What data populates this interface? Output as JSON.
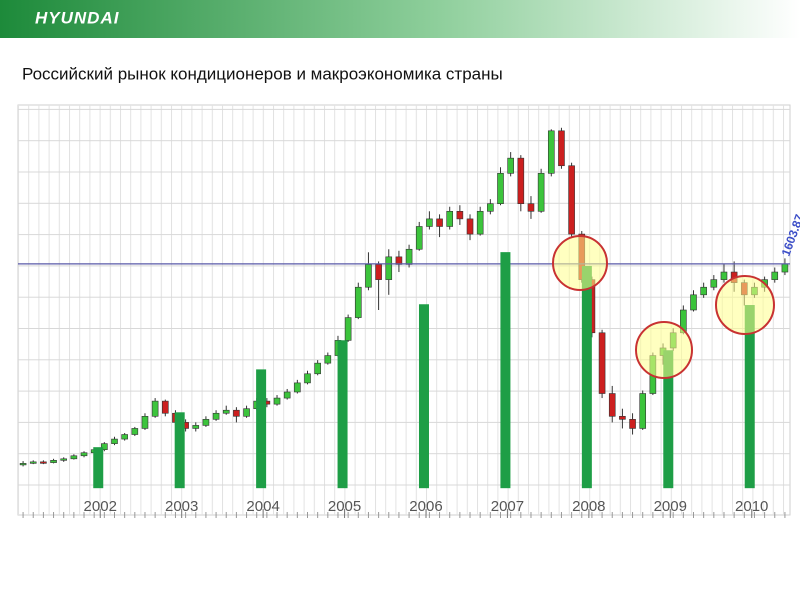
{
  "header": {
    "logo": "HYUNDAI"
  },
  "title": "Российский рынок кондиционеров и макроэкономика страны",
  "chart_data": {
    "type": "candlestick",
    "ylim": [
      -50,
      2650
    ],
    "y2lim": [
      -7,
      100
    ],
    "xlim": [
      2000.99,
      2010.47
    ],
    "xticks": [
      2002,
      2003,
      2004,
      2005,
      2006,
      2007,
      2008,
      2009,
      2010
    ],
    "up_color": "#3cc43c",
    "down_color": "#cc1f1f",
    "candles": [
      [
        280,
        305,
        270,
        290
      ],
      [
        290,
        310,
        285,
        300
      ],
      [
        300,
        310,
        285,
        295
      ],
      [
        295,
        320,
        290,
        310
      ],
      [
        310,
        330,
        300,
        320
      ],
      [
        320,
        350,
        315,
        340
      ],
      [
        340,
        370,
        330,
        360
      ],
      [
        360,
        395,
        350,
        380
      ],
      [
        380,
        430,
        370,
        420
      ],
      [
        420,
        465,
        410,
        450
      ],
      [
        450,
        490,
        440,
        480
      ],
      [
        480,
        530,
        470,
        520
      ],
      [
        520,
        620,
        510,
        600
      ],
      [
        600,
        720,
        590,
        700
      ],
      [
        700,
        710,
        600,
        620
      ],
      [
        620,
        640,
        540,
        560
      ],
      [
        560,
        580,
        500,
        520
      ],
      [
        520,
        560,
        500,
        540
      ],
      [
        540,
        600,
        530,
        580
      ],
      [
        580,
        640,
        570,
        620
      ],
      [
        620,
        670,
        610,
        640
      ],
      [
        640,
        660,
        560,
        600
      ],
      [
        600,
        670,
        590,
        650
      ],
      [
        650,
        720,
        640,
        700
      ],
      [
        700,
        720,
        660,
        680
      ],
      [
        680,
        740,
        670,
        720
      ],
      [
        720,
        780,
        710,
        760
      ],
      [
        760,
        840,
        750,
        820
      ],
      [
        820,
        900,
        810,
        880
      ],
      [
        880,
        970,
        870,
        950
      ],
      [
        950,
        1020,
        940,
        1000
      ],
      [
        1000,
        1130,
        990,
        1100
      ],
      [
        1100,
        1270,
        1090,
        1250
      ],
      [
        1250,
        1480,
        1240,
        1450
      ],
      [
        1450,
        1680,
        1430,
        1600
      ],
      [
        1600,
        1620,
        1300,
        1500
      ],
      [
        1500,
        1700,
        1400,
        1650
      ],
      [
        1650,
        1690,
        1550,
        1600
      ],
      [
        1600,
        1730,
        1580,
        1700
      ],
      [
        1700,
        1880,
        1690,
        1850
      ],
      [
        1850,
        1950,
        1830,
        1900
      ],
      [
        1900,
        1930,
        1780,
        1850
      ],
      [
        1850,
        1980,
        1830,
        1950
      ],
      [
        1950,
        1990,
        1860,
        1900
      ],
      [
        1900,
        1930,
        1760,
        1800
      ],
      [
        1800,
        1980,
        1790,
        1950
      ],
      [
        1950,
        2030,
        1930,
        2000
      ],
      [
        2000,
        2240,
        1990,
        2200
      ],
      [
        2200,
        2340,
        2180,
        2300
      ],
      [
        2300,
        2320,
        1950,
        2000
      ],
      [
        2000,
        2050,
        1900,
        1950
      ],
      [
        1950,
        2230,
        1940,
        2200
      ],
      [
        2200,
        2490,
        2180,
        2480
      ],
      [
        2480,
        2500,
        2230,
        2250
      ],
      [
        2250,
        2270,
        1780,
        1800
      ],
      [
        1800,
        1820,
        1480,
        1500
      ],
      [
        1500,
        1520,
        1120,
        1150
      ],
      [
        1150,
        1170,
        720,
        750
      ],
      [
        750,
        800,
        560,
        600
      ],
      [
        600,
        650,
        520,
        580
      ],
      [
        580,
        620,
        480,
        520
      ],
      [
        520,
        770,
        510,
        750
      ],
      [
        750,
        1020,
        740,
        1000
      ],
      [
        1000,
        1080,
        940,
        1050
      ],
      [
        1050,
        1180,
        1030,
        1150
      ],
      [
        1150,
        1330,
        1140,
        1300
      ],
      [
        1300,
        1430,
        1290,
        1400
      ],
      [
        1400,
        1480,
        1380,
        1450
      ],
      [
        1450,
        1530,
        1430,
        1500
      ],
      [
        1500,
        1600,
        1480,
        1550
      ],
      [
        1550,
        1620,
        1420,
        1480
      ],
      [
        1480,
        1500,
        1330,
        1400
      ],
      [
        1400,
        1480,
        1380,
        1450
      ],
      [
        1450,
        1520,
        1420,
        1500
      ],
      [
        1500,
        1580,
        1480,
        1550
      ],
      [
        1550,
        1640,
        1530,
        1603.87
      ]
    ],
    "bars": {
      "axis": "y2",
      "color": "#1e9e46",
      "x": [
        2002,
        2003,
        2004,
        2005,
        2006,
        2007,
        2008,
        2009,
        2010
      ],
      "values": [
        10.7,
        19.8,
        31,
        38.6,
        48,
        61.6,
        58,
        36,
        47.8
      ]
    },
    "hline": {
      "value": 1603.87,
      "label": "1603.87",
      "color": "#5a5aa8"
    }
  }
}
